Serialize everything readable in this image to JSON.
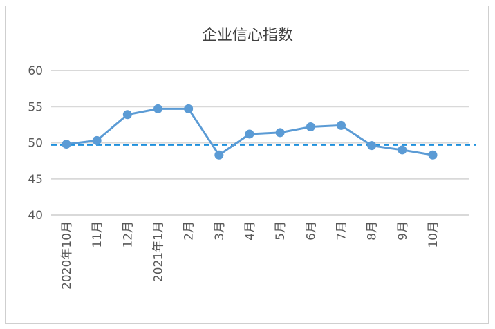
{
  "chart_data": {
    "type": "line",
    "title": "企业信心指数",
    "xlabel": "",
    "ylabel": "",
    "categories": [
      "2020年10月",
      "11月",
      "12月",
      "2021年1月",
      "2月",
      "3月",
      "4月",
      "5月",
      "6月",
      "7月",
      "8月",
      "9月",
      "10月"
    ],
    "series": [
      {
        "values": [
          49.8,
          50.3,
          53.9,
          54.7,
          54.7,
          48.3,
          51.2,
          51.4,
          52.2,
          52.4,
          49.6,
          49.0,
          48.3
        ],
        "color": "#5b9bd5"
      }
    ],
    "reference_line": {
      "value": 49.7,
      "style": "dashed",
      "color": "#1e90dd"
    },
    "ylim": [
      40,
      60
    ],
    "yticks": [
      40,
      45,
      50,
      55,
      60
    ],
    "grid": true,
    "legend": "none"
  }
}
